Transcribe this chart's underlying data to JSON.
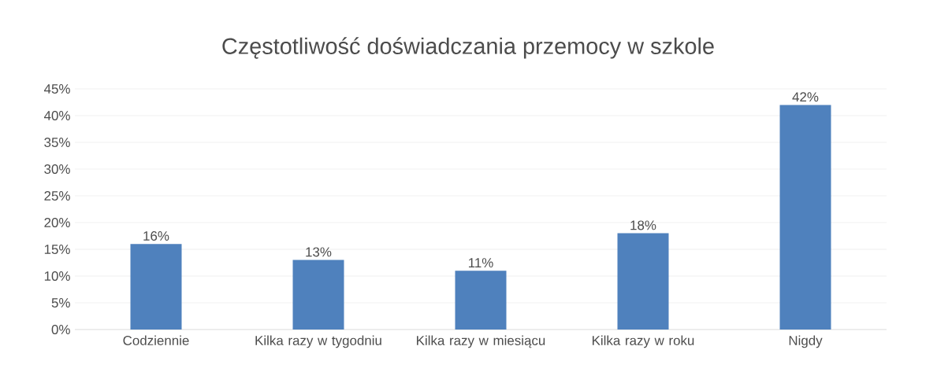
{
  "chart_data": {
    "type": "bar",
    "title": "Częstotliwość doświadczania przemocy w szkole",
    "categories": [
      "Codziennie",
      "Kilka razy w tygodniu",
      "Kilka razy w miesiącu",
      "Kilka razy w roku",
      "Nigdy"
    ],
    "values": [
      16,
      13,
      11,
      18,
      42
    ],
    "value_labels": [
      "16%",
      "13%",
      "11%",
      "18%",
      "42%"
    ],
    "color": "#4f81bd",
    "ylim": [
      0,
      45
    ],
    "yticks": [
      {
        "value": 0,
        "label": "0%"
      },
      {
        "value": 5,
        "label": "5%"
      },
      {
        "value": 10,
        "label": "10%"
      },
      {
        "value": 15,
        "label": "15%"
      },
      {
        "value": 20,
        "label": "20%"
      },
      {
        "value": 25,
        "label": "25%"
      },
      {
        "value": 30,
        "label": "30%"
      },
      {
        "value": 35,
        "label": "35%"
      },
      {
        "value": 40,
        "label": "40%"
      },
      {
        "value": 45,
        "label": "45%"
      }
    ],
    "grid": true
  }
}
